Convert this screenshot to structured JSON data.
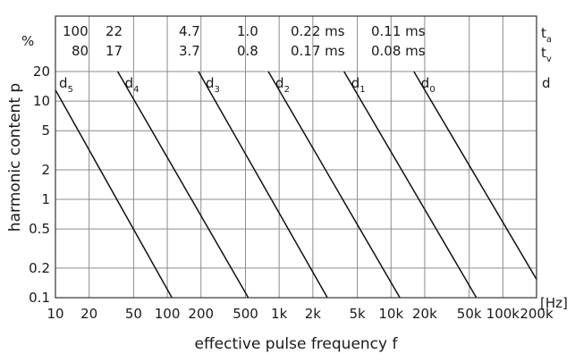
{
  "chart_data": {
    "type": "line",
    "xlabel": "effective pulse frequency f",
    "ylabel": "harmonic content p",
    "x_unit": "[Hz]",
    "y_unit": "%",
    "x_scale": "log",
    "y_scale": "log",
    "xlim": [
      10,
      200000
    ],
    "ylim": [
      0.1,
      20
    ],
    "grid": true,
    "x_ticks": [
      10,
      20,
      50,
      100,
      200,
      500,
      1000,
      2000,
      5000,
      10000,
      20000,
      50000,
      100000,
      200000
    ],
    "x_tick_labels": [
      "10",
      "20",
      "50",
      "100",
      "200",
      "500",
      "1k",
      "2k",
      "5k",
      "10k",
      "20k",
      "50k",
      "100k",
      "200k"
    ],
    "y_ticks": [
      0.1,
      0.2,
      0.5,
      1,
      2,
      5,
      10,
      20
    ],
    "y_tick_labels": [
      "0.1",
      "0.2",
      "0.5",
      "1",
      "2",
      "5",
      "10",
      "20"
    ],
    "top_rows": [
      {
        "label": "t",
        "sub": "a",
        "values": [
          "100",
          "22",
          "4.7",
          "1.0",
          "0.22 ms",
          "0.11 ms"
        ]
      },
      {
        "label": "t",
        "sub": "v",
        "values": [
          "80",
          "17",
          "3.7",
          "0.8",
          "0.17 ms",
          "0.08 ms"
        ]
      }
    ],
    "d_row_label": "d",
    "series": [
      {
        "name": "d",
        "sub": "5",
        "points": [
          [
            10,
            13
          ],
          [
            110,
            0.1
          ]
        ]
      },
      {
        "name": "d",
        "sub": "4",
        "points": [
          [
            36,
            20
          ],
          [
            530,
            0.1
          ]
        ]
      },
      {
        "name": "d",
        "sub": "3",
        "points": [
          [
            190,
            20
          ],
          [
            2700,
            0.1
          ]
        ]
      },
      {
        "name": "d",
        "sub": "2",
        "points": [
          [
            800,
            20
          ],
          [
            12000,
            0.1
          ]
        ]
      },
      {
        "name": "d",
        "sub": "1",
        "points": [
          [
            3800,
            20
          ],
          [
            58000,
            0.1
          ]
        ]
      },
      {
        "name": "d",
        "sub": "0",
        "points": [
          [
            16000,
            20
          ],
          [
            250000,
            0.1
          ]
        ]
      }
    ]
  }
}
